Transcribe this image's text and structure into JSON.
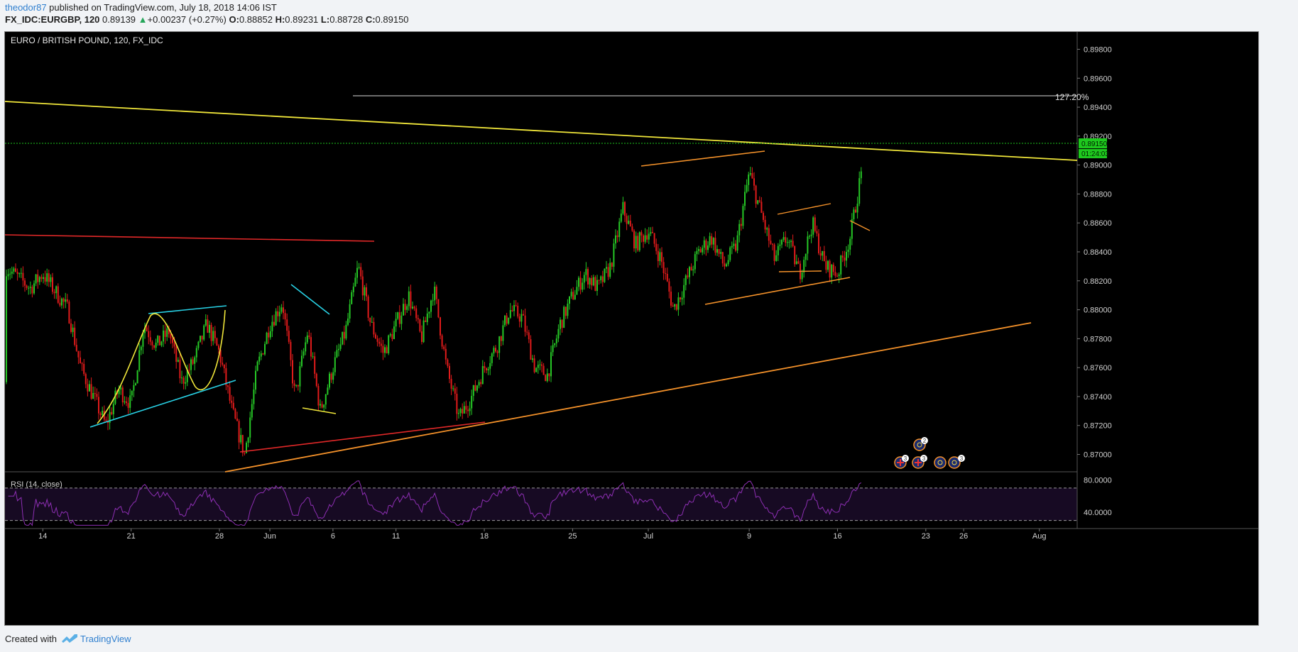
{
  "header": {
    "author": "theodor87",
    "published_text": " published on TradingView.com, July 18, 2018 14:06 IST",
    "symbol": "FX_IDC:EURGBP, 120",
    "last_price": "0.89139",
    "change_arrow": "▲",
    "change": "+0.00237 (+0.27%)",
    "o_label": "O:",
    "o_value": "0.88852",
    "h_label": "H:",
    "h_value": "0.89231",
    "l_label": "L:",
    "l_value": "0.88728",
    "c_label": "C:",
    "c_value": "0.89150"
  },
  "footer": {
    "created_with": "Created with",
    "brand": "TradingView"
  },
  "chart_data": {
    "type": "candlestick",
    "title": "EURO / BRITISH POUND, 120, FX_IDC",
    "y_range": [
      0.8688,
      0.8992
    ],
    "y_ticks": [
      "0.89800",
      "0.89600",
      "0.89400",
      "0.89200",
      "0.89000",
      "0.88800",
      "0.88600",
      "0.88400",
      "0.88200",
      "0.88000",
      "0.87800",
      "0.87600",
      "0.87400",
      "0.87200",
      "0.87000"
    ],
    "x_range_days": [
      "2018-05-11",
      "2018-08-04"
    ],
    "x_ticks": [
      {
        "label": "14",
        "date": "2018-05-14"
      },
      {
        "label": "21",
        "date": "2018-05-21"
      },
      {
        "label": "28",
        "date": "2018-05-28"
      },
      {
        "label": "Jun",
        "date": "2018-06-01"
      },
      {
        "label": "6",
        "date": "2018-06-06"
      },
      {
        "label": "11",
        "date": "2018-06-11"
      },
      {
        "label": "18",
        "date": "2018-06-18"
      },
      {
        "label": "25",
        "date": "2018-06-25"
      },
      {
        "label": "Jul",
        "date": "2018-07-01"
      },
      {
        "label": "9",
        "date": "2018-07-09"
      },
      {
        "label": "16",
        "date": "2018-07-16"
      },
      {
        "label": "23",
        "date": "2018-07-23"
      },
      {
        "label": "26",
        "date": "2018-07-26"
      },
      {
        "label": "Aug",
        "date": "2018-08-01"
      }
    ],
    "price_path": [
      [
        "2018-05-11",
        0.875
      ],
      [
        "2018-05-11",
        0.883
      ],
      [
        "2018-05-13",
        0.8815
      ],
      [
        "2018-05-14",
        0.8825
      ],
      [
        "2018-05-16",
        0.88
      ],
      [
        "2018-05-17",
        0.876
      ],
      [
        "2018-05-18",
        0.874
      ],
      [
        "2018-05-19",
        0.872
      ],
      [
        "2018-05-20",
        0.8745
      ],
      [
        "2018-05-21",
        0.8735
      ],
      [
        "2018-05-22",
        0.879
      ],
      [
        "2018-05-23",
        0.8775
      ],
      [
        "2018-05-24",
        0.8785
      ],
      [
        "2018-05-25",
        0.875
      ],
      [
        "2018-05-26",
        0.8765
      ],
      [
        "2018-05-27",
        0.879
      ],
      [
        "2018-05-28",
        0.877
      ],
      [
        "2018-05-29",
        0.873
      ],
      [
        "2018-05-30",
        0.87
      ],
      [
        "2018-05-31",
        0.876
      ],
      [
        "2018-06-01",
        0.879
      ],
      [
        "2018-06-02",
        0.8805
      ],
      [
        "2018-06-03",
        0.874
      ],
      [
        "2018-06-04",
        0.8785
      ],
      [
        "2018-06-05",
        0.873
      ],
      [
        "2018-06-06",
        0.876
      ],
      [
        "2018-06-07",
        0.8785
      ],
      [
        "2018-06-08",
        0.883
      ],
      [
        "2018-06-09",
        0.879
      ],
      [
        "2018-06-10",
        0.877
      ],
      [
        "2018-06-11",
        0.879
      ],
      [
        "2018-06-12",
        0.881
      ],
      [
        "2018-06-13",
        0.878
      ],
      [
        "2018-06-14",
        0.8815
      ],
      [
        "2018-06-15",
        0.876
      ],
      [
        "2018-06-16",
        0.8725
      ],
      [
        "2018-06-17",
        0.874
      ],
      [
        "2018-06-18",
        0.876
      ],
      [
        "2018-06-19",
        0.8775
      ],
      [
        "2018-06-20",
        0.88
      ],
      [
        "2018-06-21",
        0.8795
      ],
      [
        "2018-06-22",
        0.876
      ],
      [
        "2018-06-23",
        0.8755
      ],
      [
        "2018-06-24",
        0.879
      ],
      [
        "2018-06-25",
        0.881
      ],
      [
        "2018-06-26",
        0.8825
      ],
      [
        "2018-06-27",
        0.8815
      ],
      [
        "2018-06-28",
        0.883
      ],
      [
        "2018-06-29",
        0.887
      ],
      [
        "2018-06-30",
        0.8845
      ],
      [
        "2018-07-01",
        0.8855
      ],
      [
        "2018-07-02",
        0.8835
      ],
      [
        "2018-07-03",
        0.88
      ],
      [
        "2018-07-04",
        0.882
      ],
      [
        "2018-07-05",
        0.884
      ],
      [
        "2018-07-06",
        0.885
      ],
      [
        "2018-07-07",
        0.883
      ],
      [
        "2018-07-08",
        0.8845
      ],
      [
        "2018-07-09",
        0.8895
      ],
      [
        "2018-07-10",
        0.8865
      ],
      [
        "2018-07-11",
        0.8835
      ],
      [
        "2018-07-12",
        0.885
      ],
      [
        "2018-07-13",
        0.8825
      ],
      [
        "2018-07-14",
        0.886
      ],
      [
        "2018-07-15",
        0.883
      ],
      [
        "2018-07-16",
        0.8825
      ],
      [
        "2018-07-17",
        0.885
      ],
      [
        "2018-07-18",
        0.89
      ],
      [
        "2018-07-18",
        0.8883
      ],
      [
        "2018-07-18",
        0.8915
      ]
    ],
    "rsi": {
      "label": "RSI (14, close)",
      "y_range": [
        20,
        90
      ],
      "levels": [
        70,
        30
      ],
      "y_ticks": [
        "80.0000",
        "40.0000"
      ]
    },
    "annotations": {
      "fib_label": "127.20%",
      "last_price_tag": "0.89150",
      "timer_tag": "01:24:03"
    },
    "colors": {
      "up": "#26c826",
      "down": "#e01b1b",
      "yellow": "#f0e63a",
      "orange": "#f5922a",
      "red_line": "#e02828",
      "cyan": "#28d2e6",
      "rsi": "#8e2fb4",
      "rsi_bg": "#170a23",
      "axis_text": "#d0d0d0",
      "price_tag": "#1ec81e"
    },
    "event_badges": [
      "3",
      "2",
      "3",
      "3"
    ]
  }
}
